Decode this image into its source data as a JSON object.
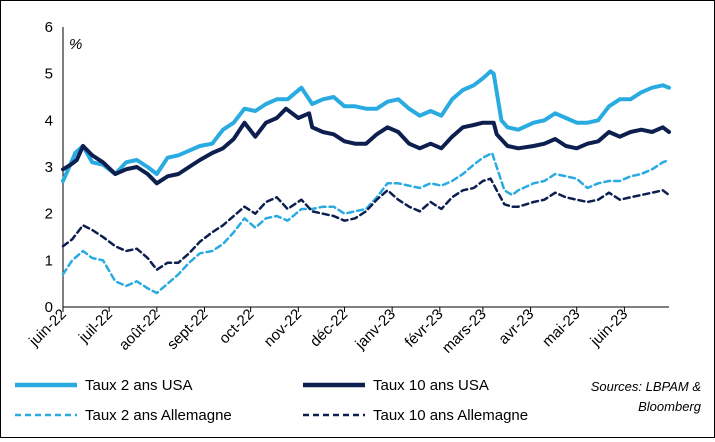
{
  "chart_data": {
    "type": "line",
    "unit_label": "%",
    "ylim": [
      0,
      6
    ],
    "yticks": [
      "0",
      "1",
      "2",
      "3",
      "4",
      "5",
      "6"
    ],
    "x_tick_labels": [
      "juin-22",
      "juil-22",
      "août-22",
      "sept-22",
      "oct-22",
      "nov-22",
      "déc-22",
      "janv-23",
      "févr-23",
      "mars-23",
      "avr-23",
      "mai-23",
      "juin-23"
    ],
    "x_tick_dates": [
      "2022-06-01",
      "2022-07-01",
      "2022-08-01",
      "2022-09-01",
      "2022-10-01",
      "2022-11-01",
      "2022-12-01",
      "2023-01-01",
      "2023-02-01",
      "2023-03-01",
      "2023-04-01",
      "2023-05-01",
      "2023-06-01"
    ],
    "x_range": [
      "2022-06-01",
      "2023-06-30"
    ],
    "grid": false,
    "legend_position": "bottom",
    "source_note": "Sources: LBPAM & Bloomberg",
    "series": [
      {
        "name": "Taux 2 ans USA",
        "color": "#29ABE2",
        "style": "solid",
        "points": [
          [
            "2022-06-01",
            2.7
          ],
          [
            "2022-06-05",
            3.0
          ],
          [
            "2022-06-09",
            3.3
          ],
          [
            "2022-06-14",
            3.45
          ],
          [
            "2022-06-20",
            3.1
          ],
          [
            "2022-06-27",
            3.05
          ],
          [
            "2022-07-05",
            2.85
          ],
          [
            "2022-07-12",
            3.1
          ],
          [
            "2022-07-19",
            3.15
          ],
          [
            "2022-07-26",
            3.0
          ],
          [
            "2022-08-01",
            2.85
          ],
          [
            "2022-08-08",
            3.2
          ],
          [
            "2022-08-15",
            3.25
          ],
          [
            "2022-08-22",
            3.35
          ],
          [
            "2022-08-29",
            3.45
          ],
          [
            "2022-09-06",
            3.5
          ],
          [
            "2022-09-13",
            3.8
          ],
          [
            "2022-09-20",
            3.95
          ],
          [
            "2022-09-27",
            4.25
          ],
          [
            "2022-10-04",
            4.2
          ],
          [
            "2022-10-11",
            4.35
          ],
          [
            "2022-10-18",
            4.45
          ],
          [
            "2022-10-25",
            4.45
          ],
          [
            "2022-11-03",
            4.7
          ],
          [
            "2022-11-10",
            4.35
          ],
          [
            "2022-11-17",
            4.45
          ],
          [
            "2022-11-24",
            4.5
          ],
          [
            "2022-12-01",
            4.3
          ],
          [
            "2022-12-08",
            4.3
          ],
          [
            "2022-12-15",
            4.25
          ],
          [
            "2022-12-22",
            4.25
          ],
          [
            "2022-12-29",
            4.4
          ],
          [
            "2023-01-05",
            4.45
          ],
          [
            "2023-01-12",
            4.25
          ],
          [
            "2023-01-19",
            4.1
          ],
          [
            "2023-01-26",
            4.2
          ],
          [
            "2023-02-02",
            4.1
          ],
          [
            "2023-02-09",
            4.45
          ],
          [
            "2023-02-16",
            4.65
          ],
          [
            "2023-02-23",
            4.75
          ],
          [
            "2023-03-01",
            4.9
          ],
          [
            "2023-03-06",
            5.05
          ],
          [
            "2023-03-08",
            5.0
          ],
          [
            "2023-03-13",
            4.0
          ],
          [
            "2023-03-17",
            3.85
          ],
          [
            "2023-03-24",
            3.8
          ],
          [
            "2023-04-03",
            3.95
          ],
          [
            "2023-04-10",
            4.0
          ],
          [
            "2023-04-17",
            4.15
          ],
          [
            "2023-04-24",
            4.05
          ],
          [
            "2023-05-01",
            3.95
          ],
          [
            "2023-05-08",
            3.95
          ],
          [
            "2023-05-15",
            4.0
          ],
          [
            "2023-05-22",
            4.3
          ],
          [
            "2023-05-29",
            4.45
          ],
          [
            "2023-06-05",
            4.45
          ],
          [
            "2023-06-12",
            4.6
          ],
          [
            "2023-06-19",
            4.7
          ],
          [
            "2023-06-26",
            4.75
          ],
          [
            "2023-06-30",
            4.7
          ]
        ]
      },
      {
        "name": "Taux 10 ans USA",
        "color": "#0D1F4F",
        "style": "solid",
        "points": [
          [
            "2022-06-01",
            2.95
          ],
          [
            "2022-06-06",
            3.05
          ],
          [
            "2022-06-10",
            3.15
          ],
          [
            "2022-06-14",
            3.45
          ],
          [
            "2022-06-20",
            3.25
          ],
          [
            "2022-06-27",
            3.1
          ],
          [
            "2022-07-05",
            2.85
          ],
          [
            "2022-07-12",
            2.95
          ],
          [
            "2022-07-19",
            3.0
          ],
          [
            "2022-07-26",
            2.85
          ],
          [
            "2022-08-01",
            2.65
          ],
          [
            "2022-08-08",
            2.8
          ],
          [
            "2022-08-15",
            2.85
          ],
          [
            "2022-08-22",
            3.0
          ],
          [
            "2022-08-29",
            3.15
          ],
          [
            "2022-09-06",
            3.3
          ],
          [
            "2022-09-13",
            3.4
          ],
          [
            "2022-09-20",
            3.6
          ],
          [
            "2022-09-27",
            3.95
          ],
          [
            "2022-10-04",
            3.65
          ],
          [
            "2022-10-11",
            3.95
          ],
          [
            "2022-10-18",
            4.05
          ],
          [
            "2022-10-24",
            4.25
          ],
          [
            "2022-11-01",
            4.05
          ],
          [
            "2022-11-08",
            4.15
          ],
          [
            "2022-11-10",
            3.85
          ],
          [
            "2022-11-17",
            3.75
          ],
          [
            "2022-11-24",
            3.7
          ],
          [
            "2022-12-01",
            3.55
          ],
          [
            "2022-12-08",
            3.5
          ],
          [
            "2022-12-15",
            3.5
          ],
          [
            "2022-12-22",
            3.7
          ],
          [
            "2022-12-29",
            3.85
          ],
          [
            "2023-01-05",
            3.75
          ],
          [
            "2023-01-12",
            3.5
          ],
          [
            "2023-01-19",
            3.4
          ],
          [
            "2023-01-26",
            3.5
          ],
          [
            "2023-02-02",
            3.4
          ],
          [
            "2023-02-09",
            3.65
          ],
          [
            "2023-02-16",
            3.85
          ],
          [
            "2023-02-23",
            3.9
          ],
          [
            "2023-03-01",
            3.95
          ],
          [
            "2023-03-08",
            3.95
          ],
          [
            "2023-03-10",
            3.7
          ],
          [
            "2023-03-17",
            3.45
          ],
          [
            "2023-03-24",
            3.4
          ],
          [
            "2023-04-03",
            3.45
          ],
          [
            "2023-04-10",
            3.5
          ],
          [
            "2023-04-17",
            3.6
          ],
          [
            "2023-04-24",
            3.45
          ],
          [
            "2023-05-01",
            3.4
          ],
          [
            "2023-05-08",
            3.5
          ],
          [
            "2023-05-15",
            3.55
          ],
          [
            "2023-05-22",
            3.75
          ],
          [
            "2023-05-29",
            3.65
          ],
          [
            "2023-06-05",
            3.75
          ],
          [
            "2023-06-12",
            3.8
          ],
          [
            "2023-06-19",
            3.75
          ],
          [
            "2023-06-26",
            3.85
          ],
          [
            "2023-06-30",
            3.75
          ]
        ]
      },
      {
        "name": "Taux 2 ans Allemagne",
        "color": "#29ABE2",
        "style": "dashed",
        "points": [
          [
            "2022-06-01",
            0.7
          ],
          [
            "2022-06-07",
            1.0
          ],
          [
            "2022-06-14",
            1.2
          ],
          [
            "2022-06-20",
            1.05
          ],
          [
            "2022-06-27",
            1.0
          ],
          [
            "2022-07-05",
            0.55
          ],
          [
            "2022-07-12",
            0.45
          ],
          [
            "2022-07-19",
            0.55
          ],
          [
            "2022-07-26",
            0.4
          ],
          [
            "2022-08-01",
            0.3
          ],
          [
            "2022-08-08",
            0.5
          ],
          [
            "2022-08-15",
            0.7
          ],
          [
            "2022-08-22",
            0.95
          ],
          [
            "2022-08-29",
            1.15
          ],
          [
            "2022-09-06",
            1.2
          ],
          [
            "2022-09-13",
            1.35
          ],
          [
            "2022-09-20",
            1.6
          ],
          [
            "2022-09-27",
            1.9
          ],
          [
            "2022-10-04",
            1.7
          ],
          [
            "2022-10-11",
            1.9
          ],
          [
            "2022-10-18",
            1.95
          ],
          [
            "2022-10-25",
            1.85
          ],
          [
            "2022-11-03",
            2.1
          ],
          [
            "2022-11-10",
            2.1
          ],
          [
            "2022-11-17",
            2.15
          ],
          [
            "2022-11-24",
            2.15
          ],
          [
            "2022-12-01",
            2.0
          ],
          [
            "2022-12-08",
            2.05
          ],
          [
            "2022-12-15",
            2.1
          ],
          [
            "2022-12-22",
            2.35
          ],
          [
            "2022-12-29",
            2.65
          ],
          [
            "2023-01-05",
            2.65
          ],
          [
            "2023-01-12",
            2.6
          ],
          [
            "2023-01-19",
            2.55
          ],
          [
            "2023-01-26",
            2.65
          ],
          [
            "2023-02-02",
            2.6
          ],
          [
            "2023-02-09",
            2.7
          ],
          [
            "2023-02-16",
            2.85
          ],
          [
            "2023-02-23",
            3.05
          ],
          [
            "2023-03-01",
            3.2
          ],
          [
            "2023-03-07",
            3.3
          ],
          [
            "2023-03-10",
            3.0
          ],
          [
            "2023-03-15",
            2.5
          ],
          [
            "2023-03-20",
            2.4
          ],
          [
            "2023-03-24",
            2.5
          ],
          [
            "2023-04-03",
            2.65
          ],
          [
            "2023-04-10",
            2.7
          ],
          [
            "2023-04-17",
            2.85
          ],
          [
            "2023-04-24",
            2.8
          ],
          [
            "2023-05-01",
            2.75
          ],
          [
            "2023-05-08",
            2.55
          ],
          [
            "2023-05-15",
            2.65
          ],
          [
            "2023-05-22",
            2.7
          ],
          [
            "2023-05-29",
            2.7
          ],
          [
            "2023-06-05",
            2.8
          ],
          [
            "2023-06-12",
            2.85
          ],
          [
            "2023-06-19",
            2.95
          ],
          [
            "2023-06-26",
            3.1
          ],
          [
            "2023-06-30",
            3.15
          ]
        ]
      },
      {
        "name": "Taux 10 ans Allemagne",
        "color": "#0D1F4F",
        "style": "dashed",
        "points": [
          [
            "2022-06-01",
            1.3
          ],
          [
            "2022-06-07",
            1.45
          ],
          [
            "2022-06-14",
            1.75
          ],
          [
            "2022-06-20",
            1.65
          ],
          [
            "2022-06-27",
            1.5
          ],
          [
            "2022-07-05",
            1.3
          ],
          [
            "2022-07-12",
            1.2
          ],
          [
            "2022-07-19",
            1.25
          ],
          [
            "2022-07-26",
            1.05
          ],
          [
            "2022-08-01",
            0.8
          ],
          [
            "2022-08-08",
            0.95
          ],
          [
            "2022-08-15",
            0.95
          ],
          [
            "2022-08-22",
            1.15
          ],
          [
            "2022-08-29",
            1.4
          ],
          [
            "2022-09-06",
            1.6
          ],
          [
            "2022-09-13",
            1.75
          ],
          [
            "2022-09-20",
            1.95
          ],
          [
            "2022-09-27",
            2.15
          ],
          [
            "2022-10-04",
            2.0
          ],
          [
            "2022-10-11",
            2.25
          ],
          [
            "2022-10-18",
            2.35
          ],
          [
            "2022-10-25",
            2.1
          ],
          [
            "2022-11-03",
            2.3
          ],
          [
            "2022-11-10",
            2.05
          ],
          [
            "2022-11-17",
            2.0
          ],
          [
            "2022-11-24",
            1.95
          ],
          [
            "2022-12-01",
            1.85
          ],
          [
            "2022-12-08",
            1.9
          ],
          [
            "2022-12-15",
            2.05
          ],
          [
            "2022-12-22",
            2.3
          ],
          [
            "2022-12-29",
            2.5
          ],
          [
            "2023-01-05",
            2.3
          ],
          [
            "2023-01-12",
            2.15
          ],
          [
            "2023-01-19",
            2.05
          ],
          [
            "2023-01-26",
            2.25
          ],
          [
            "2023-02-02",
            2.1
          ],
          [
            "2023-02-09",
            2.35
          ],
          [
            "2023-02-16",
            2.5
          ],
          [
            "2023-02-23",
            2.55
          ],
          [
            "2023-03-01",
            2.7
          ],
          [
            "2023-03-06",
            2.75
          ],
          [
            "2023-03-10",
            2.5
          ],
          [
            "2023-03-15",
            2.2
          ],
          [
            "2023-03-20",
            2.15
          ],
          [
            "2023-03-24",
            2.15
          ],
          [
            "2023-04-03",
            2.25
          ],
          [
            "2023-04-10",
            2.3
          ],
          [
            "2023-04-17",
            2.45
          ],
          [
            "2023-04-24",
            2.35
          ],
          [
            "2023-05-01",
            2.3
          ],
          [
            "2023-05-08",
            2.25
          ],
          [
            "2023-05-15",
            2.3
          ],
          [
            "2023-05-22",
            2.45
          ],
          [
            "2023-05-29",
            2.3
          ],
          [
            "2023-06-05",
            2.35
          ],
          [
            "2023-06-12",
            2.4
          ],
          [
            "2023-06-19",
            2.45
          ],
          [
            "2023-06-26",
            2.5
          ],
          [
            "2023-06-30",
            2.4
          ]
        ]
      }
    ]
  }
}
